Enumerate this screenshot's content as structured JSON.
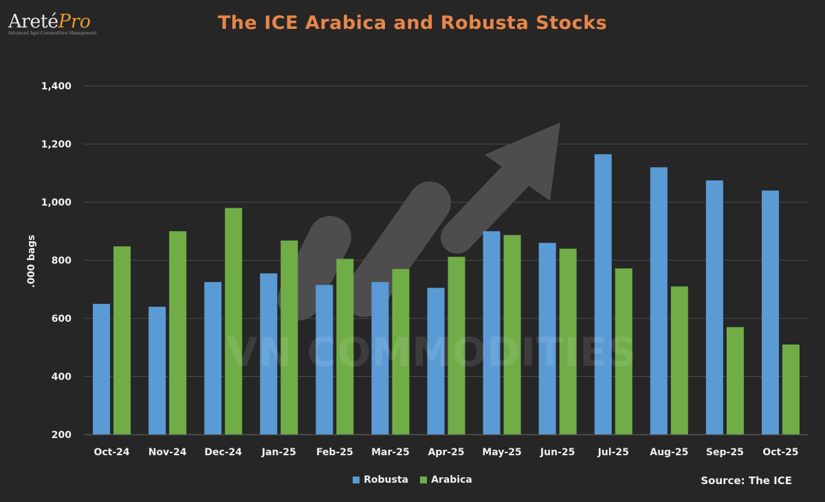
{
  "logo": {
    "brand_primary": "Areté",
    "brand_secondary": "Pro",
    "tagline": "Advanced Agri-Commodities Management"
  },
  "watermark": "VN COMMODITIES",
  "source_note": "Source: The ICE",
  "colors": {
    "background": "#262626",
    "title": "#e8864a",
    "robusta": "#5b9bd5",
    "arabica": "#70ad47",
    "grid": "#4a4a4a"
  },
  "chart_data": {
    "type": "bar",
    "title": "The ICE Arabica and Robusta Stocks",
    "ylabel": ".000 bags",
    "xlabel": "",
    "ylim": [
      200,
      1400
    ],
    "yticks": [
      "200",
      "400",
      "600",
      "800",
      "1,000",
      "1,200",
      "1,400"
    ],
    "ytick_values": [
      200,
      400,
      600,
      800,
      1000,
      1200,
      1400
    ],
    "grid": true,
    "legend_position": "bottom-center",
    "categories": [
      "Oct-24",
      "Nov-24",
      "Dec-24",
      "Jan-25",
      "Feb-25",
      "Mar-25",
      "Apr-25",
      "May-25",
      "Jun-25",
      "Jul-25",
      "Aug-25",
      "Sep-25",
      "Oct-25"
    ],
    "series": [
      {
        "name": "Robusta",
        "color": "#5b9bd5",
        "values": [
          650,
          640,
          725,
          755,
          715,
          725,
          705,
          900,
          860,
          1165,
          1120,
          1075,
          1040
        ]
      },
      {
        "name": "Arabica",
        "color": "#70ad47",
        "values": [
          848,
          900,
          980,
          868,
          805,
          770,
          812,
          887,
          840,
          772,
          710,
          570,
          510
        ]
      }
    ]
  }
}
